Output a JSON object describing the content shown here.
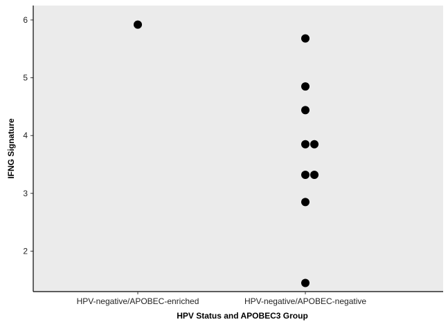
{
  "chart_data": {
    "type": "scatter",
    "title": "",
    "xlabel": "HPV Status and APOBEC3 Group",
    "ylabel": "IFNG Signature",
    "categories": [
      "HPV-negative/APOBEC-enriched",
      "HPV-negative/APOBEC-negative"
    ],
    "ylim": [
      1.3,
      6.25
    ],
    "yticks": [
      2,
      3,
      4,
      5,
      6
    ],
    "grid": false,
    "panel_color": "#ebebeb",
    "point_color": "#000000",
    "points": [
      {
        "category": "HPV-negative/APOBEC-enriched",
        "y": 5.92
      },
      {
        "category": "HPV-negative/APOBEC-negative",
        "y": 5.68
      },
      {
        "category": "HPV-negative/APOBEC-negative",
        "y": 4.85
      },
      {
        "category": "HPV-negative/APOBEC-negative",
        "y": 4.44
      },
      {
        "category": "HPV-negative/APOBEC-negative",
        "y": 3.85
      },
      {
        "category": "HPV-negative/APOBEC-negative",
        "y": 3.85
      },
      {
        "category": "HPV-negative/APOBEC-negative",
        "y": 3.32
      },
      {
        "category": "HPV-negative/APOBEC-negative",
        "y": 3.32
      },
      {
        "category": "HPV-negative/APOBEC-negative",
        "y": 2.85
      },
      {
        "category": "HPV-negative/APOBEC-negative",
        "y": 1.45
      }
    ]
  }
}
